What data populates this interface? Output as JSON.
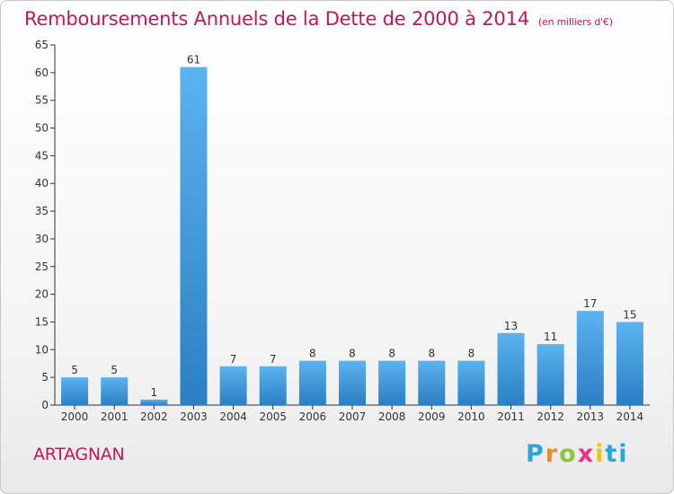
{
  "title": {
    "main": "Remboursements Annuels de la Dette de 2000 à 2014",
    "unit": "(en milliers d'€)"
  },
  "place": "ARTAGNAN",
  "logo": {
    "letters": [
      "P",
      "r",
      "o",
      "x",
      "i",
      "ti"
    ]
  },
  "colors": {
    "title": "#c2185b",
    "bar_top": "#5cb3ee",
    "bar_bottom": "#2b7fc4"
  },
  "chart_data": {
    "type": "bar",
    "title": "Remboursements Annuels de la Dette de 2000 à 2014",
    "subtitle": "(en milliers d'€)",
    "categories": [
      "2000",
      "2001",
      "2002",
      "2003",
      "2004",
      "2005",
      "2006",
      "2007",
      "2008",
      "2009",
      "2010",
      "2011",
      "2012",
      "2013",
      "2014"
    ],
    "values": [
      5,
      5,
      1,
      61,
      7,
      7,
      8,
      8,
      8,
      8,
      8,
      13,
      11,
      17,
      15
    ],
    "data_labels": [
      "5",
      "5",
      "1",
      "61",
      "7",
      "7",
      "8",
      "8",
      "8",
      "8",
      "8",
      "13",
      "11",
      "17",
      "15"
    ],
    "ylim": [
      0,
      65
    ],
    "yticks": [
      0,
      5,
      10,
      15,
      20,
      25,
      30,
      35,
      40,
      45,
      50,
      55,
      60,
      65
    ],
    "grid": false,
    "legend": "none"
  }
}
